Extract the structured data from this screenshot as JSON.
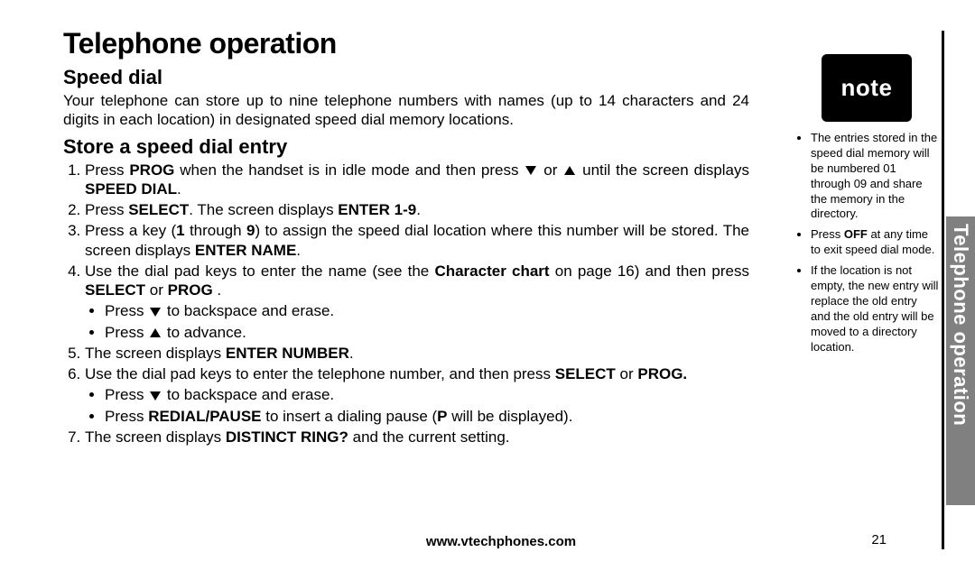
{
  "page": {
    "section_title": "Telephone operation",
    "side_tab": "Telephone operation",
    "footer_url": "www.vtechphones.com",
    "page_number": "21"
  },
  "speed_dial": {
    "heading": "Speed dial",
    "intro": "Your telephone can store up to nine telephone numbers with names (up to 14 characters and 24 digits in each location) in designated speed dial memory locations."
  },
  "store_entry": {
    "heading": "Store a speed dial entry",
    "step1_a": "Press ",
    "step1_b": "PROG",
    "step1_c": " when the handset is in idle mode and then press ",
    "step1_d": " or ",
    "step1_e": " until the screen displays ",
    "step1_f": "SPEED DIAL",
    "step1_g": ".",
    "step2_a": "Press ",
    "step2_b": "SELECT",
    "step2_c": ". The screen displays ",
    "step2_d": "ENTER 1-9",
    "step2_e": ".",
    "step3_a": "Press a key (",
    "step3_b": "1",
    "step3_c": " through ",
    "step3_d": "9",
    "step3_e": ") to assign the speed dial location where this number will be stored. The screen displays ",
    "step3_f": "ENTER NAME",
    "step3_g": ".",
    "step4_a": "Use the dial pad keys to enter the name (see the ",
    "step4_b": "Character chart",
    "step4_c": " on page 16) and then press ",
    "step4_d": "SELECT",
    "step4_e": " or ",
    "step4_f": "PROG",
    "step4_g": " .",
    "step4_sub1_a": "Press ",
    "step4_sub1_b": " to backspace and erase.",
    "step4_sub2_a": "Press ",
    "step4_sub2_b": " to advance.",
    "step5_a": "The screen displays ",
    "step5_b": "ENTER NUMBER",
    "step5_c": ".",
    "step6_a": "Use the dial pad keys to enter the telephone number, and then press ",
    "step6_b": "SELECT",
    "step6_c": " or ",
    "step6_d": "PROG.",
    "step6_sub1_a": "Press ",
    "step6_sub1_b": " to backspace and erase.",
    "step6_sub2_a": "Press ",
    "step6_sub2_b": "REDIAL/PAUSE",
    "step6_sub2_c": " to insert a dialing pause (",
    "step6_sub2_d": "P",
    "step6_sub2_e": " will be displayed).",
    "step7_a": "The screen displays ",
    "step7_b": "DISTINCT RING?",
    "step7_c": " and the current setting."
  },
  "note": {
    "badge": "note",
    "item1": "The entries stored in the speed dial memory will be numbered 01 through 09 and share the memory in the directory.",
    "item2_a": "Press ",
    "item2_b": "OFF",
    "item2_c": " at any time to exit speed dial mode.",
    "item3": "If the location is not empty, the new entry will replace the old entry and the old entry will be moved to a directory location."
  }
}
